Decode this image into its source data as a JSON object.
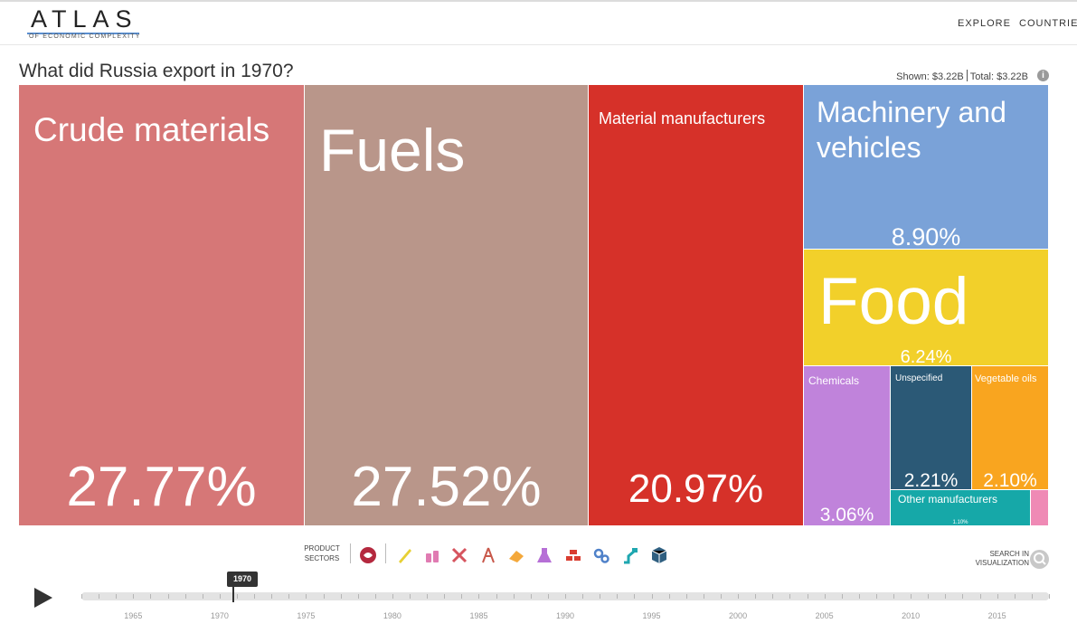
{
  "header": {
    "logo": "ATLAS",
    "logo_subtitle": "OF ECONOMIC COMPLEXITY",
    "nav": [
      "EXPLORE",
      "COUNTRIES"
    ]
  },
  "title": "What did Russia export in 1970?",
  "totals": {
    "shown_label": "Shown:",
    "shown_value": "$3.22B",
    "total_label": "Total:",
    "total_value": "$3.22B"
  },
  "chart_data": {
    "type": "treemap",
    "title": "What did Russia export in 1970?",
    "total": "$3.22B",
    "items": [
      {
        "name": "Crude materials",
        "value": 27.77,
        "label": "27.77%",
        "color": "#d67777"
      },
      {
        "name": "Fuels",
        "value": 27.52,
        "label": "27.52%",
        "color": "#b9968a"
      },
      {
        "name": "Material manufacturers",
        "value": 20.97,
        "label": "20.97%",
        "color": "#d63129"
      },
      {
        "name": "Machinery and vehicles",
        "value": 8.9,
        "label": "8.90%",
        "color": "#7aa2d8"
      },
      {
        "name": "Food",
        "value": 6.24,
        "label": "6.24%",
        "color": "#f2d02a"
      },
      {
        "name": "Chemicals",
        "value": 3.06,
        "label": "3.06%",
        "color": "#c083db"
      },
      {
        "name": "Unspecified",
        "value": 2.21,
        "label": "2.21%",
        "color": "#2b5976"
      },
      {
        "name": "Vegetable oils",
        "value": 2.1,
        "label": "2.10%",
        "color": "#f9a51f"
      },
      {
        "name": "Other manufacturers",
        "value": 1.1,
        "label": "1.10%",
        "color": "#16a8a8"
      },
      {
        "name": "",
        "value": 0.13,
        "label": "",
        "color": "#ef8ab5"
      }
    ]
  },
  "controls": {
    "product_sectors_label": "PRODUCT SECTORS",
    "sector_icons": [
      {
        "name": "all-sectors-icon",
        "color": "#b4283e"
      },
      {
        "name": "textiles-icon",
        "color": "#e7d034"
      },
      {
        "name": "chemicals-icon",
        "color": "#e07bb2"
      },
      {
        "name": "tools-icon",
        "color": "#d6545e"
      },
      {
        "name": "oil-derrick-icon",
        "color": "#c8584a"
      },
      {
        "name": "food-icon",
        "color": "#f4a83a"
      },
      {
        "name": "lab-flask-icon",
        "color": "#b66fd6"
      },
      {
        "name": "bricks-icon",
        "color": "#d93c30"
      },
      {
        "name": "gears-icon",
        "color": "#4f81c9"
      },
      {
        "name": "robot-arm-icon",
        "color": "#1fa7b0"
      },
      {
        "name": "box-icon",
        "color": "#2f5f80"
      }
    ],
    "search_label": "SEARCH IN VISUALIZATION"
  },
  "timeline": {
    "selected_year": "1970",
    "start_year": 1962,
    "end_year": 2018,
    "year_labels": [
      "1965",
      "1970",
      "1975",
      "1980",
      "1985",
      "1990",
      "1995",
      "2000",
      "2005",
      "2010",
      "2015"
    ]
  }
}
